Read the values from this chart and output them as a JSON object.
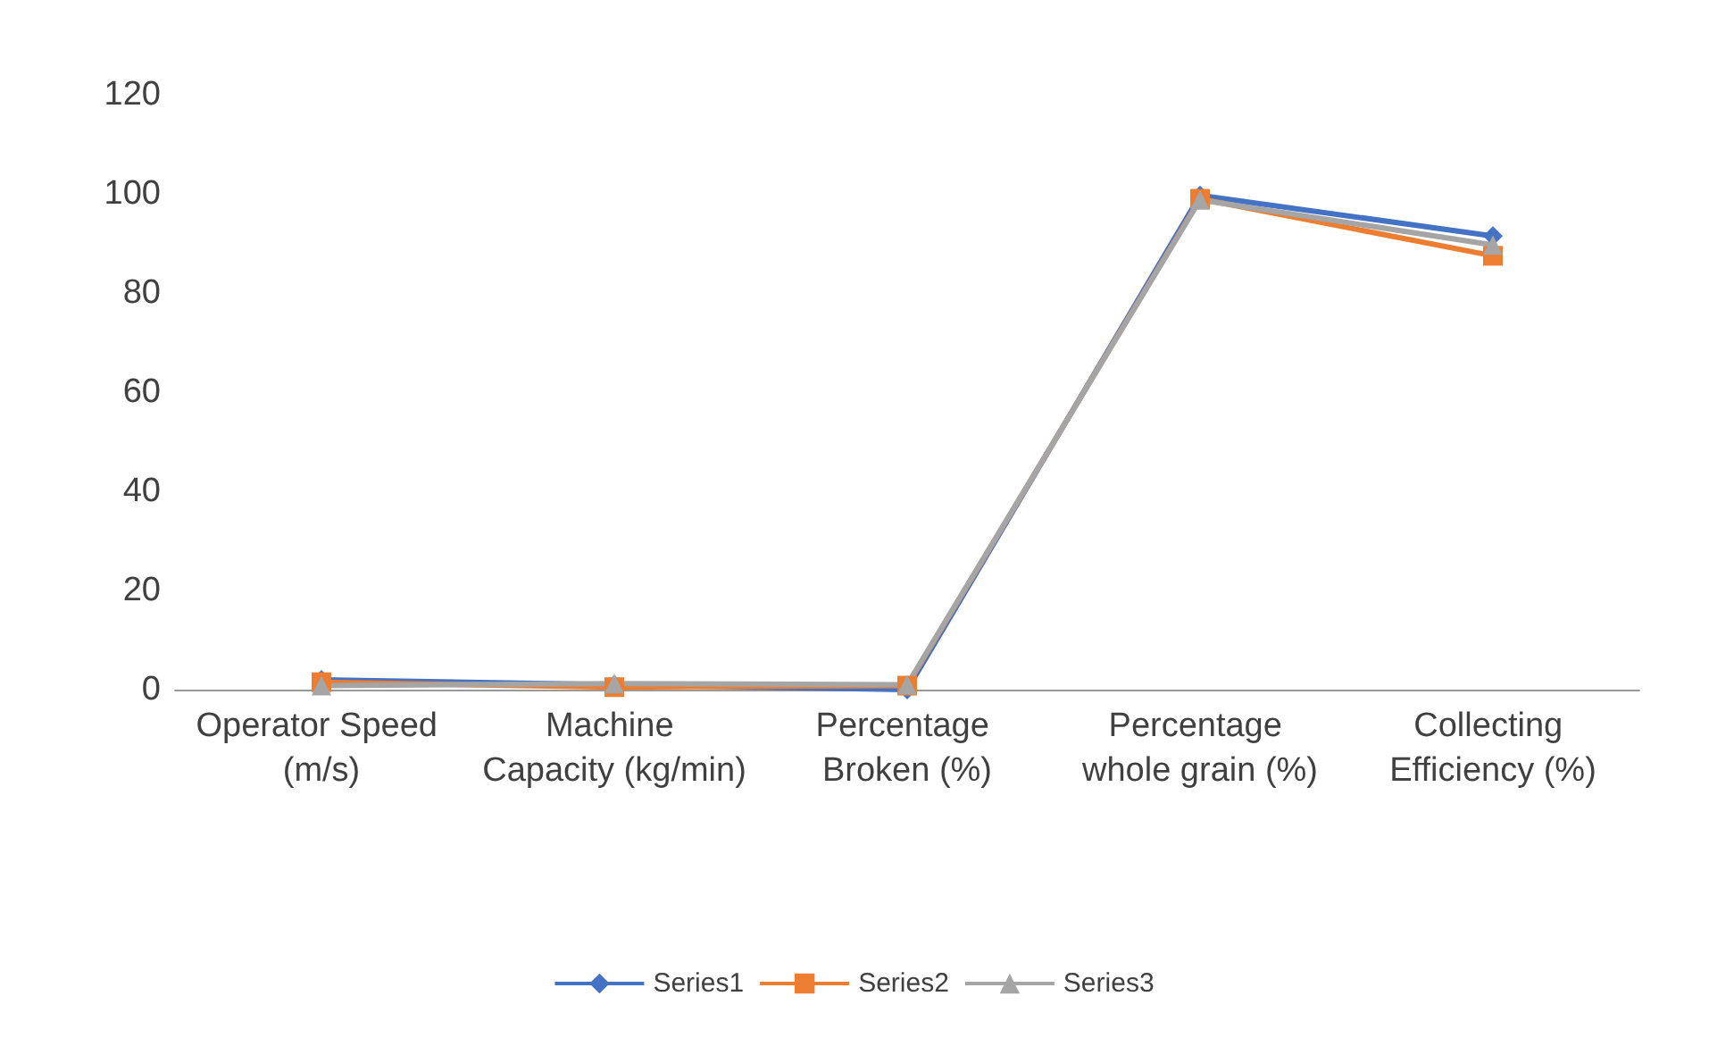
{
  "chart_data": {
    "type": "line",
    "categories": [
      "Operator Speed (m/s)",
      "Machine Capacity (kg/min)",
      "Percentage Broken (%)",
      "Percentage whole grain (%)",
      "Collecting Efficiency (%)"
    ],
    "series": [
      {
        "name": "Series1",
        "color": "#4472c4",
        "marker": "diamond",
        "values": [
          2,
          1,
          0,
          99.7,
          91.5
        ]
      },
      {
        "name": "Series2",
        "color": "#ed7d31",
        "marker": "square",
        "values": [
          1.5,
          0.5,
          0.8,
          99,
          87.5
        ]
      },
      {
        "name": "Series3",
        "color": "#a5a5a5",
        "marker": "triangle",
        "values": [
          0.8,
          1.2,
          1,
          98.8,
          89.7
        ]
      }
    ],
    "ylim": [
      0,
      120
    ],
    "yticks": [
      0,
      20,
      40,
      60,
      80,
      100,
      120
    ],
    "grid": false,
    "legend": "bottom",
    "line_style": "solid"
  }
}
